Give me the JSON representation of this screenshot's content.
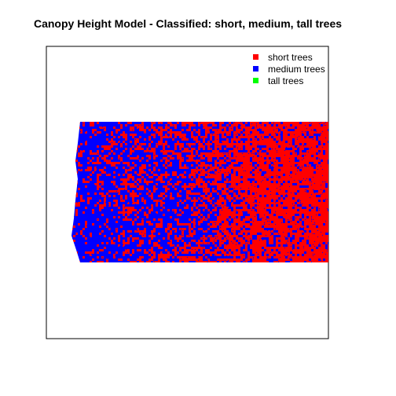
{
  "chart_data": {
    "type": "heatmap",
    "title": "Canopy Height Model - Classified: short, medium, tall trees",
    "xlabel": "",
    "ylabel": "",
    "grid": false,
    "axes_visible": false,
    "legend": {
      "placement": "top-right",
      "entries": [
        {
          "label": "short trees",
          "color": "#ff0000"
        },
        {
          "label": "medium trees",
          "color": "#0000ff"
        },
        {
          "label": "tall trees",
          "color": "#00ff00"
        }
      ]
    },
    "classes": [
      {
        "name": "short trees",
        "color": "#ff0000"
      },
      {
        "name": "medium trees",
        "color": "#0000ff"
      },
      {
        "name": "tall trees",
        "color": "#00ff00"
      }
    ],
    "background_color": "#ffffff"
  }
}
